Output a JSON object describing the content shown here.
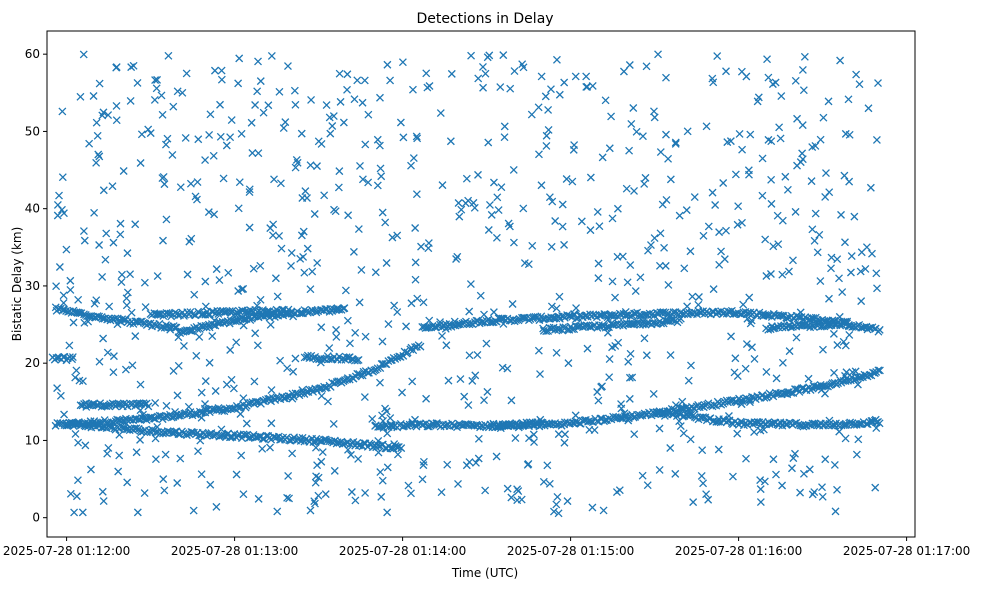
{
  "chart_data": {
    "type": "scatter",
    "title": "Detections in Delay",
    "xlabel": "Time (UTC)",
    "ylabel": "Bistatic Delay (km)",
    "x_unit": "time",
    "xlim": [
      "2025-07-28 01:11:53",
      "2025-07-28 01:17:03"
    ],
    "ylim": [
      -2.5,
      63
    ],
    "x_ticks": [
      "2025-07-28 01:12:00",
      "2025-07-28 01:13:00",
      "2025-07-28 01:14:00",
      "2025-07-28 01:15:00",
      "2025-07-28 01:16:00",
      "2025-07-28 01:17:00"
    ],
    "y_ticks": [
      0,
      10,
      20,
      30,
      40,
      50,
      60
    ],
    "marker": "x",
    "color": "#1f77b4",
    "grid": false,
    "series": [
      {
        "tracks": [
          {
            "x": [
              "2025-07-28 01:11:56",
              "2025-07-28 01:12:30",
              "2025-07-28 01:13:00",
              "2025-07-28 01:13:30",
              "2025-07-28 01:13:50",
              "2025-07-28 01:14:07"
            ],
            "y": [
              12.0,
              12.8,
              14.2,
              16.6,
              19.2,
              22.5
            ]
          },
          {
            "x": [
              "2025-07-28 01:14:07",
              "2025-07-28 01:14:30",
              "2025-07-28 01:15:00",
              "2025-07-28 01:15:30",
              "2025-07-28 01:16:00",
              "2025-07-28 01:16:30",
              "2025-07-28 01:16:51"
            ],
            "y": [
              24.5,
              25.5,
              26.0,
              26.4,
              26.6,
              25.6,
              24.2
            ]
          },
          {
            "x": [
              "2025-07-28 01:14:34",
              "2025-07-28 01:15:00",
              "2025-07-28 01:15:30",
              "2025-07-28 01:16:00",
              "2025-07-28 01:16:30",
              "2025-07-28 01:16:51"
            ],
            "y": [
              11.8,
              12.2,
              13.5,
              15.2,
              17.0,
              19.0
            ]
          },
          {
            "x": [
              "2025-07-28 01:12:00",
              "2025-07-28 01:12:30",
              "2025-07-28 01:13:00",
              "2025-07-28 01:13:30",
              "2025-07-28 01:14:00"
            ],
            "y": [
              12.2,
              11.2,
              10.6,
              10.0,
              9.0
            ]
          },
          {
            "x": [
              "2025-07-28 01:12:40",
              "2025-07-28 01:13:00",
              "2025-07-28 01:13:20",
              "2025-07-28 01:13:40"
            ],
            "y": [
              24.0,
              25.5,
              26.5,
              27.0
            ]
          },
          {
            "x": [
              "2025-07-28 01:11:56",
              "2025-07-28 01:12:20",
              "2025-07-28 01:12:40"
            ],
            "y": [
              27.0,
              25.5,
              24.5
            ]
          },
          {
            "x": [
              "2025-07-28 01:12:30",
              "2025-07-28 01:13:00",
              "2025-07-28 01:13:20"
            ],
            "y": [
              26.2,
              26.6,
              26.8
            ]
          },
          {
            "x": [
              "2025-07-28 01:15:30",
              "2025-07-28 01:16:00",
              "2025-07-28 01:16:30",
              "2025-07-28 01:16:51"
            ],
            "y": [
              13.8,
              12.2,
              12.0,
              12.4
            ]
          },
          {
            "x": [
              "2025-07-28 01:13:50",
              "2025-07-28 01:14:10",
              "2025-07-28 01:14:30",
              "2025-07-28 01:14:50"
            ],
            "y": [
              11.8,
              12.0,
              11.9,
              12.2
            ]
          },
          {
            "x": [
              "2025-07-28 01:14:50",
              "2025-07-28 01:15:20",
              "2025-07-28 01:15:40"
            ],
            "y": [
              24.3,
              25.0,
              25.6
            ]
          },
          {
            "x": [
              "2025-07-28 01:16:10",
              "2025-07-28 01:16:40"
            ],
            "y": [
              24.5,
              25.2
            ]
          },
          {
            "x": [
              "2025-07-28 01:12:05",
              "2025-07-28 01:12:30"
            ],
            "y": [
              14.6,
              14.6
            ]
          },
          {
            "x": [
              "2025-07-28 01:13:25",
              "2025-07-28 01:13:45"
            ],
            "y": [
              20.8,
              20.5
            ]
          },
          {
            "x": [
              "2025-07-28 01:11:55",
              "2025-07-28 01:12:03"
            ],
            "y": [
              20.6,
              20.6
            ]
          }
        ],
        "clutter_y_range": [
          0.5,
          60
        ]
      }
    ]
  }
}
